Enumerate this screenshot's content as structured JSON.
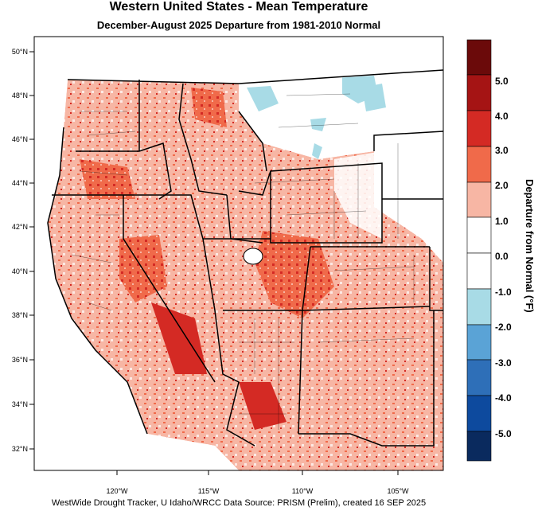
{
  "title": "Western United States - Mean Temperature",
  "subtitle": "December-August 2025  Departure from 1981-2010 Normal",
  "credit": "WestWide Drought Tracker, U Idaho/WRCC Data Source: PRISM (Prelim), created 16 SEP 2025",
  "lat_labels": [
    "50°N",
    "48°N",
    "46°N",
    "44°N",
    "42°N",
    "40°N",
    "38°N",
    "36°N",
    "34°N",
    "32°N"
  ],
  "lon_labels": [
    "120°W",
    "115°W",
    "110°W",
    "105°W"
  ],
  "colorbar": {
    "title": "Departure from Normal (°F)",
    "labels": [
      "5.0",
      "4.0",
      "3.0",
      "2.0",
      "1.0",
      "0.0",
      "-1.0",
      "-2.0",
      "-3.0",
      "-4.0",
      "-5.0"
    ],
    "colors": [
      "#6b0a0a",
      "#a51414",
      "#d42a24",
      "#f06a4a",
      "#f7b6a4",
      "#ffffff",
      "#ffffff",
      "#a8dbe6",
      "#5aa3d6",
      "#2e6fb8",
      "#0d4a9e",
      "#0a2a5e"
    ]
  },
  "palette": {
    "warm1": "#f7b6a4",
    "warm2": "#f06a4a",
    "warm3": "#d42a24",
    "warm4": "#a51414",
    "cool1": "#a8dbe6",
    "cool2": "#5aa3d6"
  }
}
